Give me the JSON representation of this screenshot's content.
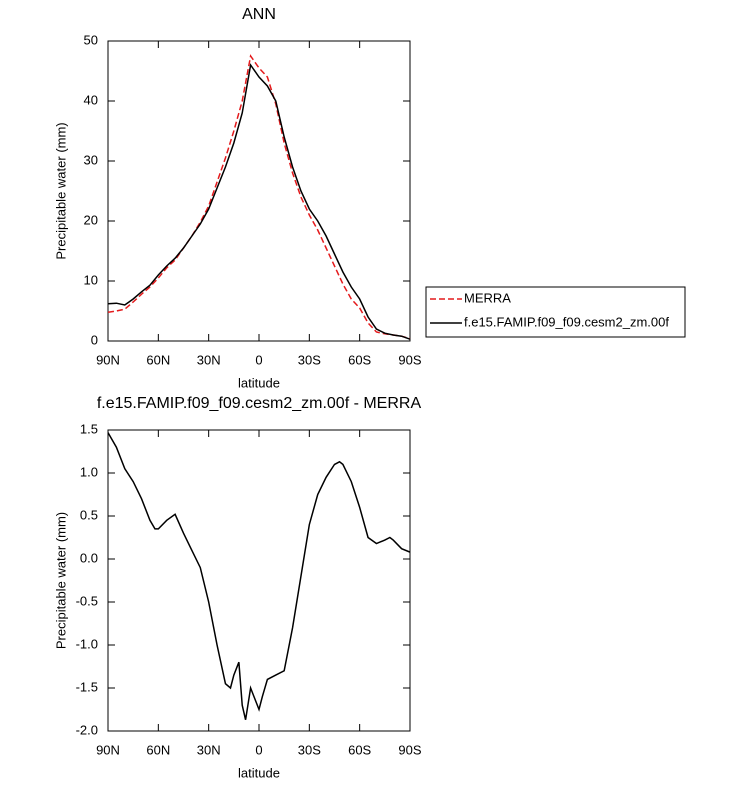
{
  "chart_data": [
    {
      "type": "line",
      "title": "ANN",
      "x_label": "latitude",
      "y_label": "Precipitable water (mm)",
      "x": [
        90,
        85,
        80,
        75,
        70,
        65,
        60,
        55,
        50,
        45,
        40,
        35,
        30,
        25,
        20,
        15,
        10,
        5,
        0,
        -5,
        -10,
        -15,
        -20,
        -25,
        -30,
        -35,
        -40,
        -45,
        -50,
        -55,
        -60,
        -65,
        -70,
        -75,
        -80,
        -85,
        -90
      ],
      "series": [
        {
          "name": "MERRA",
          "color": "#e41a1c",
          "linestyle": "dashed",
          "values": [
            4.8,
            5.0,
            5.3,
            6.5,
            7.8,
            9.0,
            10.5,
            12.2,
            13.5,
            15.5,
            17.5,
            19.8,
            22.5,
            26.5,
            30.5,
            35,
            40,
            47.5,
            45.5,
            44,
            39.5,
            33,
            28,
            24,
            21,
            18.5,
            15.5,
            12.5,
            9.5,
            7,
            5.5,
            3,
            1.5,
            1.2,
            1.0,
            0.8,
            0.4
          ]
        },
        {
          "name": "f.e15.FAMIP.f09_f09.cesm2_zm.00f",
          "color": "#000000",
          "linestyle": "solid",
          "values": [
            6.2,
            6.3,
            6.0,
            7.0,
            8.2,
            9.3,
            11.0,
            12.5,
            13.8,
            15.5,
            17.5,
            19.5,
            22.0,
            25.5,
            29.0,
            33.0,
            38.0,
            46.0,
            44.0,
            42.5,
            40.0,
            34.0,
            29.0,
            25.0,
            22.0,
            20.0,
            17.5,
            14.5,
            11.5,
            9.0,
            7.0,
            4.0,
            2.0,
            1.3,
            1.0,
            0.8,
            0.3
          ]
        }
      ],
      "xlim": [
        90,
        -90
      ],
      "xticks": [
        {
          "value": 90,
          "label": "90N"
        },
        {
          "value": 60,
          "label": "60N"
        },
        {
          "value": 30,
          "label": "30N"
        },
        0,
        {
          "value": -30,
          "label": "30S"
        },
        {
          "value": -60,
          "label": "60S"
        },
        {
          "value": -90,
          "label": "90S"
        }
      ],
      "ylim": [
        0,
        50
      ],
      "yticks": [
        0,
        10,
        20,
        30,
        40,
        50
      ],
      "legend": "right"
    },
    {
      "type": "line",
      "title": "f.e15.FAMIP.f09_f09.cesm2_zm.00f - MERRA",
      "x_label": "latitude",
      "y_label": "Precipitable water (mm)",
      "x": [
        90,
        85,
        80,
        75,
        70,
        65,
        62,
        60,
        55,
        50,
        45,
        40,
        35,
        30,
        25,
        20,
        17,
        15,
        12,
        10,
        8,
        5,
        2,
        0,
        -2,
        -5,
        -10,
        -15,
        -20,
        -25,
        -30,
        -35,
        -40,
        -45,
        -48,
        -50,
        -55,
        -60,
        -65,
        -70,
        -75,
        -78,
        -80,
        -85,
        -90
      ],
      "series": [
        {
          "name": "f.e15.FAMIP.f09_f09.cesm2_zm.00f - MERRA",
          "color": "#000000",
          "linestyle": "solid",
          "values": [
            1.47,
            1.3,
            1.05,
            0.9,
            0.7,
            0.45,
            0.35,
            0.35,
            0.45,
            0.52,
            0.3,
            0.1,
            -0.1,
            -0.5,
            -1.0,
            -1.45,
            -1.5,
            -1.35,
            -1.2,
            -1.7,
            -1.87,
            -1.5,
            -1.65,
            -1.75,
            -1.6,
            -1.4,
            -1.35,
            -1.3,
            -0.8,
            -0.2,
            0.4,
            0.75,
            0.95,
            1.1,
            1.13,
            1.1,
            0.9,
            0.6,
            0.25,
            0.18,
            0.22,
            0.25,
            0.22,
            0.12,
            0.08
          ]
        }
      ],
      "xlim": [
        90,
        -90
      ],
      "xticks": [
        {
          "value": 90,
          "label": "90N"
        },
        {
          "value": 60,
          "label": "60N"
        },
        {
          "value": 30,
          "label": "30N"
        },
        0,
        {
          "value": -30,
          "label": "30S"
        },
        {
          "value": -60,
          "label": "60S"
        },
        {
          "value": -90,
          "label": "90S"
        }
      ],
      "ylim": [
        -2.0,
        1.5
      ],
      "yticks": [
        1.5,
        {
          "value": 1,
          "label": "1.0"
        },
        0.5,
        {
          "value": 0,
          "label": "0.0"
        },
        -0.5,
        {
          "value": -1,
          "label": "-1.0"
        },
        -1.5,
        {
          "value": -2,
          "label": "-2.0"
        }
      ]
    }
  ]
}
